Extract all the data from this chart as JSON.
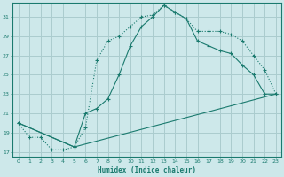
{
  "xlabel": "Humidex (Indice chaleur)",
  "xlim": [
    -0.5,
    23.5
  ],
  "ylim": [
    16.5,
    32.5
  ],
  "yticks": [
    17,
    19,
    21,
    23,
    25,
    27,
    29,
    31
  ],
  "xticks": [
    0,
    1,
    2,
    3,
    4,
    5,
    6,
    7,
    8,
    9,
    10,
    11,
    12,
    13,
    14,
    15,
    16,
    17,
    18,
    19,
    20,
    21,
    22,
    23
  ],
  "bg_color": "#cde8ea",
  "grid_color": "#aaccce",
  "line_color": "#1a7a6e",
  "line1_x": [
    0,
    1,
    2,
    3,
    4,
    5,
    6,
    7,
    8,
    9,
    10,
    11,
    12,
    13,
    14,
    15,
    16,
    17,
    18,
    19,
    20,
    21,
    22,
    23
  ],
  "line1_y": [
    20.0,
    18.5,
    18.5,
    17.2,
    17.2,
    17.5,
    19.5,
    26.5,
    28.5,
    29.0,
    30.0,
    31.0,
    31.2,
    32.2,
    31.5,
    30.8,
    29.5,
    29.5,
    29.5,
    29.2,
    28.5,
    27.0,
    25.5,
    23.0
  ],
  "line2_x": [
    0,
    5,
    6,
    7,
    8,
    9,
    10,
    11,
    12,
    13,
    14,
    15,
    16,
    17,
    18,
    19,
    20,
    21,
    22,
    23
  ],
  "line2_y": [
    20.0,
    17.5,
    21.0,
    21.5,
    22.5,
    25.0,
    28.0,
    30.0,
    31.0,
    32.2,
    31.5,
    30.8,
    28.5,
    28.0,
    27.5,
    27.2,
    26.0,
    25.0,
    23.0,
    23.0
  ],
  "line3_x": [
    0,
    5,
    23
  ],
  "line3_y": [
    20.0,
    17.5,
    23.0
  ]
}
